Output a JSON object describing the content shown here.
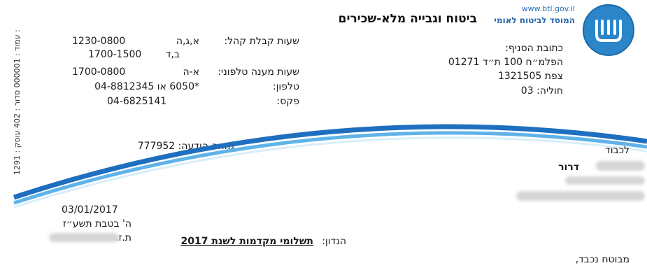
{
  "side_text": "1291 : עמוד : 000001  סדור : 402  עוסק :",
  "header": {
    "url": "www.btl.gov.il",
    "org_name": "המוסד לביטוח לאומי",
    "title": "ביטוח וגבייה מלא-שכירים"
  },
  "branch": {
    "label": "כתובת הסניף:",
    "street": "הפלמ״ח 100 ת״ד 01271",
    "city": "צפת 1321505",
    "code": "חוליה: 03"
  },
  "hours": {
    "reception_label": "שעות קבלת קהל:",
    "reception_days_1": "א,ג,ה",
    "reception_time_1": "1230-0800",
    "reception_days_2": "ב,ד",
    "reception_time_2": "1700-1500",
    "phone_hours_label": "שעות מענה טלפוני:",
    "phone_days": "א-ה",
    "phone_time": "1700-0800",
    "phone_label": "טלפון:",
    "phone_value": "*6050 או 04-8812345",
    "fax_label": "פקס:",
    "fax_value": "04-6825141"
  },
  "notice_id": "מזהה הודעה: 777952",
  "recipient": {
    "to": "לכבוד",
    "name": "דרור"
  },
  "dates": {
    "gregorian": "03/01/2017",
    "hebrew": "ה' בטבת תשע״ז",
    "id_label": "ת.ז."
  },
  "subject": {
    "label": "הנדון:",
    "text": "תשלומי מקדמות לשנת 2017"
  },
  "greeting": "מבוטח נכבד,",
  "colors": {
    "brand_blue": "#2b86c9",
    "arc_dark": "#1e6fbf",
    "arc_light": "#5fb3e8"
  }
}
